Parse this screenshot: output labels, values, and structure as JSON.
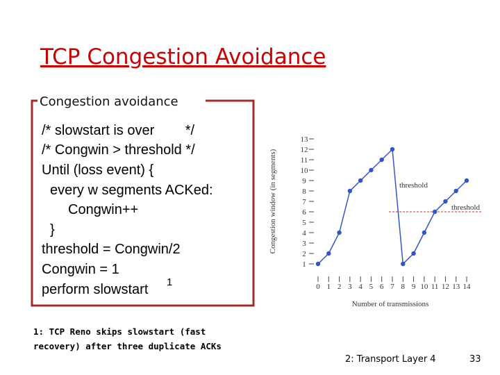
{
  "title": "TCP Congestion Avoidance",
  "box": {
    "label": "Congestion avoidance",
    "lines": [
      "/* slowstart is over        */",
      "/* Congwin > threshold */",
      "Until (loss event) {",
      "every w segments ACKed:",
      "Congwin++",
      "}",
      "threshold = Congwin/2",
      "Congwin = 1",
      "perform slowstart"
    ],
    "superscript": "1"
  },
  "footnote": [
    "1: TCP Reno skips slowstart (fast",
    "recovery) after three duplicate ACKs"
  ],
  "footer": {
    "left": "2: Transport Layer 4",
    "page": "33"
  },
  "chart_data": {
    "type": "line",
    "x_label": "Number of transmissions",
    "y_label": "Congestion window (in segments)",
    "x": [
      0,
      1,
      2,
      3,
      4,
      5,
      6,
      7,
      8,
      9,
      10,
      11,
      12,
      13,
      14
    ],
    "series": [
      {
        "color": "#3355cc",
        "values": [
          1,
          2,
          4,
          8,
          9,
          10,
          11,
          12,
          1,
          2,
          4,
          6,
          7,
          8,
          9
        ]
      }
    ],
    "xlim": [
      0,
      14
    ],
    "ylim": [
      1,
      13
    ],
    "xticks": [
      0,
      1,
      2,
      3,
      4,
      5,
      6,
      7,
      8,
      9,
      10,
      11,
      12,
      13,
      14
    ],
    "yticks": [
      1,
      2,
      3,
      4,
      5,
      6,
      7,
      8,
      9,
      10,
      11,
      12,
      13
    ],
    "annotations": [
      "threshold",
      "threshold"
    ],
    "threshold": 6,
    "threshold_color": "#cc3333"
  }
}
